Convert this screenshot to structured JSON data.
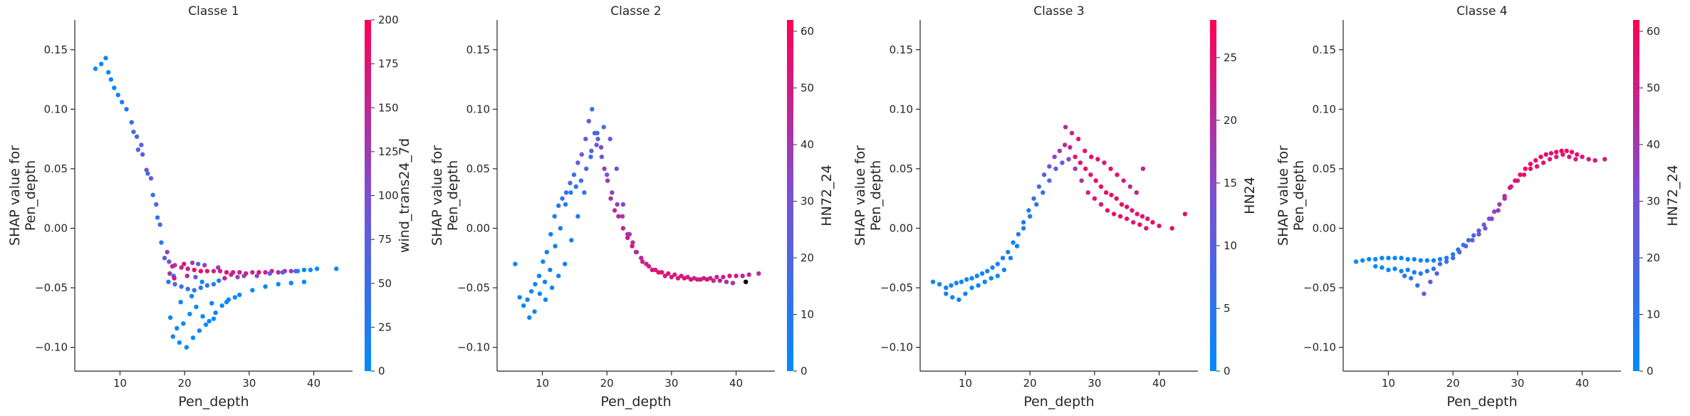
{
  "chart_data": [
    {
      "type": "scatter",
      "title": "Classe 1",
      "xlabel": "Pen_depth",
      "ylabel": "SHAP value for\nPen_depth",
      "colorbar_label": "wind_trans24_7d",
      "xlim": [
        3,
        46
      ],
      "ylim": [
        -0.12,
        0.175
      ],
      "xticks": [
        10,
        20,
        30,
        40
      ],
      "yticks": [
        -0.1,
        -0.05,
        0.0,
        0.05,
        0.1,
        0.15
      ],
      "color_range": [
        0,
        200
      ],
      "color_ticks": [
        0,
        25,
        50,
        75,
        100,
        125,
        150,
        175,
        200
      ],
      "colormap": [
        "#008bfb",
        "#ff0052"
      ],
      "x": [
        6.2,
        7.1,
        7.8,
        8.2,
        8.6,
        9.1,
        9.7,
        10.3,
        11,
        11.8,
        12.6,
        13.5,
        14.3,
        15.1,
        15.8,
        16.4,
        16.9,
        17.6,
        18.5,
        19.5,
        20.5,
        21.5,
        22.5,
        23.5,
        24.5,
        25.5,
        26.5,
        27.5,
        28.5,
        29.5,
        30.5,
        31.5,
        32.5,
        33.5,
        34.5,
        35.5,
        36.5,
        37.5,
        38.5,
        39.5,
        40.5,
        43.5,
        17.5,
        18.5,
        19.5,
        20.5,
        21.5,
        22.5,
        23.5,
        24.5,
        17.8,
        18.8,
        19.8,
        20.8,
        21.8,
        22.8,
        23.8,
        24.8,
        25.8,
        26.8,
        27.8,
        18.2,
        19.2,
        20.3,
        21.3,
        22.3,
        23.3,
        24.5,
        26.5,
        28.5,
        30.5,
        32.5,
        34.5,
        36.5,
        38.5,
        18.3,
        19.4,
        21.1,
        22.7,
        24.2,
        25.3,
        17.3,
        17.7,
        18.1,
        18.4,
        19.9,
        20.4,
        21.2,
        21.7,
        22.1,
        23.1,
        25.2,
        26.2,
        27.2,
        28.2,
        29.2,
        31.2,
        33.2,
        35.2,
        37.2,
        12.1,
        12.8,
        13.3,
        14.1,
        14.8,
        15.6,
        16.2
      ],
      "y": [
        0.134,
        0.138,
        0.143,
        0.131,
        0.125,
        0.118,
        0.112,
        0.106,
        0.1,
        0.089,
        0.077,
        0.062,
        0.046,
        0.028,
        0.009,
        -0.012,
        -0.025,
        -0.028,
        -0.031,
        -0.033,
        -0.034,
        -0.035,
        -0.036,
        -0.036,
        -0.036,
        -0.036,
        -0.037,
        -0.037,
        -0.037,
        -0.038,
        -0.037,
        -0.037,
        -0.037,
        -0.036,
        -0.037,
        -0.036,
        -0.036,
        -0.036,
        -0.035,
        -0.035,
        -0.034,
        -0.034,
        -0.045,
        -0.047,
        -0.049,
        -0.051,
        -0.052,
        -0.05,
        -0.048,
        -0.047,
        -0.075,
        -0.084,
        -0.08,
        -0.072,
        -0.066,
        -0.074,
        -0.078,
        -0.071,
        -0.065,
        -0.06,
        -0.058,
        -0.091,
        -0.096,
        -0.1,
        -0.092,
        -0.086,
        -0.081,
        -0.076,
        -0.062,
        -0.056,
        -0.052,
        -0.049,
        -0.047,
        -0.046,
        -0.045,
        -0.04,
        -0.062,
        -0.057,
        -0.045,
        -0.063,
        -0.044,
        -0.02,
        -0.038,
        -0.032,
        -0.042,
        -0.03,
        -0.04,
        -0.029,
        -0.041,
        -0.03,
        -0.031,
        -0.033,
        -0.042,
        -0.039,
        -0.041,
        -0.04,
        -0.04,
        -0.038,
        -0.037,
        -0.036,
        0.081,
        0.066,
        0.07,
        0.049,
        0.042,
        0.02,
        0.003
      ],
      "c": [
        2,
        4,
        6,
        8,
        12,
        10,
        15,
        20,
        30,
        45,
        60,
        75,
        50,
        40,
        30,
        25,
        80,
        100,
        120,
        150,
        160,
        180,
        190,
        170,
        160,
        150,
        180,
        170,
        160,
        180,
        150,
        170,
        160,
        150,
        140,
        150,
        130,
        10,
        5,
        5,
        5,
        3,
        40,
        60,
        55,
        40,
        35,
        45,
        40,
        30,
        10,
        8,
        6,
        5,
        7,
        6,
        5,
        8,
        6,
        5,
        4,
        4,
        3,
        3,
        2,
        4,
        3,
        5,
        6,
        5,
        4,
        4,
        3,
        3,
        3,
        20,
        15,
        12,
        10,
        8,
        15,
        120,
        140,
        160,
        170,
        180,
        150,
        130,
        90,
        70,
        120,
        140,
        160,
        150,
        120,
        110,
        110,
        90,
        60,
        50,
        60,
        80,
        70,
        90,
        80,
        60,
        50
      ]
    },
    {
      "type": "scatter",
      "title": "Classe 2",
      "xlabel": "Pen_depth",
      "ylabel": "SHAP value for\nPen_depth",
      "colorbar_label": "HN72_24",
      "xlim": [
        3,
        46
      ],
      "ylim": [
        -0.12,
        0.175
      ],
      "xticks": [
        10,
        20,
        30,
        40
      ],
      "yticks": [
        -0.1,
        -0.05,
        0.0,
        0.05,
        0.1,
        0.15
      ],
      "color_range": [
        0,
        62
      ],
      "color_ticks": [
        0,
        10,
        20,
        30,
        40,
        50,
        60
      ],
      "colormap": [
        "#008bfb",
        "#ff0052"
      ],
      "x": [
        5.8,
        6.5,
        7.1,
        7.7,
        8.3,
        8.9,
        9.5,
        10.1,
        10.7,
        11.3,
        11.9,
        12.5,
        13.1,
        13.7,
        14.3,
        14.9,
        15.5,
        16.1,
        16.7,
        17.2,
        17.7,
        18.1,
        18.6,
        19.1,
        19.6,
        20.1,
        20.6,
        21.2,
        21.8,
        22.5,
        23.2,
        23.9,
        24.6,
        25.3,
        26.1,
        27,
        28,
        29,
        30,
        31,
        32,
        33,
        34,
        35,
        36,
        37,
        38,
        39,
        40,
        41,
        42,
        43.5,
        8,
        8.8,
        9.6,
        10.4,
        11.2,
        12,
        12.8,
        13.6,
        14.4,
        15.2,
        16,
        16.8,
        17.6,
        18.4,
        19.2,
        20,
        20.8,
        21.6,
        22.4,
        23.2,
        24,
        10.5,
        11.5,
        12.5,
        13.5,
        14.5,
        15.5,
        16.5,
        17.5,
        18.5,
        19.5,
        20.5,
        21.5,
        22.5,
        23.5,
        24.5,
        25.5,
        26.5,
        27.5,
        28.5,
        29.5,
        30.5,
        31.5,
        32.5,
        33.5,
        34.5,
        35.5,
        36.5,
        37.5,
        38.5,
        39.5,
        41.5
      ],
      "y": [
        -0.03,
        -0.058,
        -0.065,
        -0.06,
        -0.053,
        -0.047,
        -0.04,
        -0.028,
        -0.02,
        -0.005,
        0.01,
        0.019,
        0.025,
        0.03,
        0.038,
        0.045,
        0.055,
        0.062,
        0.075,
        0.09,
        0.1,
        0.08,
        0.075,
        0.068,
        0.05,
        0.04,
        0.025,
        0.015,
        0.01,
        0.0,
        -0.008,
        -0.015,
        -0.02,
        -0.025,
        -0.03,
        -0.035,
        -0.037,
        -0.04,
        -0.041,
        -0.042,
        -0.042,
        -0.043,
        -0.043,
        -0.042,
        -0.042,
        -0.041,
        -0.041,
        -0.04,
        -0.04,
        -0.04,
        -0.039,
        -0.038,
        -0.075,
        -0.07,
        -0.055,
        -0.045,
        -0.035,
        -0.015,
        0.0,
        0.02,
        0.03,
        0.035,
        0.04,
        0.05,
        0.065,
        0.07,
        0.06,
        0.045,
        0.03,
        0.02,
        0.01,
        -0.005,
        -0.012,
        -0.06,
        -0.05,
        -0.04,
        -0.03,
        -0.01,
        0.01,
        0.03,
        0.06,
        0.08,
        0.085,
        0.075,
        0.05,
        0.02,
        -0.005,
        -0.02,
        -0.028,
        -0.032,
        -0.035,
        -0.037,
        -0.038,
        -0.039,
        -0.04,
        -0.041,
        -0.042,
        -0.043,
        -0.043,
        -0.044,
        -0.044,
        -0.045,
        -0.046,
        -0.045
      ],
      "c": [
        2,
        2,
        3,
        2,
        4,
        3,
        2,
        5,
        4,
        6,
        8,
        10,
        12,
        15,
        20,
        18,
        25,
        30,
        28,
        22,
        15,
        20,
        25,
        35,
        38,
        40,
        42,
        45,
        48,
        50,
        52,
        55,
        50,
        48,
        52,
        55,
        58,
        50,
        52,
        55,
        58,
        56,
        54,
        52,
        50,
        48,
        50,
        52,
        50,
        48,
        46,
        45,
        2,
        3,
        2,
        3,
        4,
        5,
        6,
        8,
        10,
        12,
        15,
        18,
        20,
        25,
        28,
        30,
        35,
        38,
        40,
        42,
        45,
        3,
        2,
        4,
        5,
        6,
        8,
        10,
        12,
        15,
        18,
        22,
        28,
        35,
        40,
        45,
        48,
        50,
        52,
        55,
        55,
        50,
        52,
        48,
        45,
        50,
        52,
        48,
        45,
        42,
        40
      ],
      "annotations": []
    },
    {
      "type": "scatter",
      "title": "Classe 3",
      "xlabel": "Pen_depth",
      "ylabel": "SHAP value for\nPen_depth",
      "colorbar_label": "HN24",
      "xlim": [
        3,
        46
      ],
      "ylim": [
        -0.12,
        0.175
      ],
      "xticks": [
        10,
        20,
        30,
        40
      ],
      "yticks": [
        -0.1,
        -0.05,
        0.0,
        0.05,
        0.1,
        0.15
      ],
      "color_range": [
        0,
        28
      ],
      "color_ticks": [
        0,
        5,
        10,
        15,
        20,
        25
      ],
      "colormap": [
        "#008bfb",
        "#ff0052"
      ],
      "x": [
        5,
        6,
        7,
        7.8,
        8.6,
        9.4,
        10.2,
        11,
        11.8,
        12.6,
        13.4,
        14.2,
        15,
        15.8,
        16.6,
        17.4,
        18.2,
        19,
        19.8,
        20.6,
        21.4,
        22.2,
        23,
        23.8,
        24.6,
        25.4,
        26.2,
        27,
        27.8,
        28.6,
        29.4,
        30.2,
        31,
        31.8,
        32.6,
        33.4,
        34.2,
        35,
        35.8,
        36.6,
        37.4,
        38.2,
        39,
        40,
        42,
        44,
        7,
        8,
        9,
        10,
        11,
        12,
        13,
        14,
        15,
        16,
        17,
        18,
        19,
        20,
        21,
        22,
        23,
        24,
        25,
        26,
        27,
        28,
        29,
        30,
        31,
        32,
        33,
        34,
        35,
        36,
        37,
        38,
        25.5,
        26.5,
        27.5,
        28.5,
        29.5,
        30.5,
        31.5,
        32.5,
        33.5,
        34.5,
        35.5,
        36.5,
        37.5
      ],
      "y": [
        -0.045,
        -0.047,
        -0.05,
        -0.048,
        -0.046,
        -0.045,
        -0.043,
        -0.042,
        -0.04,
        -0.038,
        -0.036,
        -0.033,
        -0.03,
        -0.025,
        -0.02,
        -0.012,
        -0.005,
        0.005,
        0.015,
        0.025,
        0.035,
        0.045,
        0.052,
        0.06,
        0.065,
        0.07,
        0.068,
        0.06,
        0.055,
        0.05,
        0.045,
        0.04,
        0.035,
        0.03,
        0.028,
        0.025,
        0.02,
        0.018,
        0.015,
        0.012,
        0.01,
        0.008,
        0.005,
        0.002,
        0.0,
        0.012,
        -0.055,
        -0.058,
        -0.06,
        -0.055,
        -0.05,
        -0.048,
        -0.045,
        -0.042,
        -0.04,
        -0.035,
        -0.025,
        -0.015,
        0.0,
        0.01,
        0.02,
        0.03,
        0.04,
        0.05,
        0.055,
        0.058,
        0.05,
        0.04,
        0.03,
        0.025,
        0.02,
        0.015,
        0.012,
        0.01,
        0.008,
        0.005,
        0.003,
        0.0,
        0.085,
        0.08,
        0.075,
        0.065,
        0.06,
        0.058,
        0.055,
        0.05,
        0.045,
        0.04,
        0.035,
        0.03,
        0.05
      ],
      "c": [
        1,
        1,
        2,
        1,
        2,
        1,
        2,
        1,
        2,
        1,
        2,
        3,
        2,
        3,
        4,
        3,
        4,
        5,
        4,
        6,
        8,
        10,
        12,
        15,
        18,
        20,
        22,
        24,
        25,
        26,
        25,
        26,
        27,
        26,
        25,
        26,
        27,
        26,
        25,
        26,
        25,
        24,
        26,
        25,
        26,
        25,
        1,
        2,
        1,
        2,
        1,
        2,
        1,
        2,
        1,
        2,
        3,
        2,
        3,
        4,
        5,
        6,
        8,
        10,
        12,
        15,
        18,
        20,
        22,
        24,
        25,
        26,
        25,
        26,
        25,
        24,
        26,
        25,
        20,
        22,
        24,
        25,
        26,
        25,
        24,
        26,
        25,
        24,
        20,
        22,
        24
      ]
    },
    {
      "type": "scatter",
      "title": "Classe 4",
      "xlabel": "Pen_depth",
      "ylabel": "SHAP value for\nPen_depth",
      "colorbar_label": "HN72_24",
      "xlim": [
        3,
        46
      ],
      "ylim": [
        -0.12,
        0.175
      ],
      "xticks": [
        10,
        20,
        30,
        40
      ],
      "yticks": [
        -0.1,
        -0.05,
        0.0,
        0.05,
        0.1,
        0.15
      ],
      "color_range": [
        0,
        62
      ],
      "color_ticks": [
        0,
        10,
        20,
        30,
        40,
        50,
        60
      ],
      "colormap": [
        "#008bfb",
        "#ff0052"
      ],
      "x": [
        5,
        6,
        7,
        8,
        9,
        10,
        11,
        12,
        13,
        14,
        15,
        16,
        17,
        18,
        19,
        20,
        20.8,
        21.6,
        22.4,
        23.2,
        24,
        24.8,
        25.6,
        26.4,
        27.2,
        28,
        28.8,
        29.6,
        30.4,
        31.2,
        32,
        32.8,
        33.6,
        34.4,
        35.2,
        36,
        36.8,
        37.6,
        38.4,
        39.2,
        40,
        41,
        42,
        43.5,
        8,
        9,
        10,
        11,
        12,
        13,
        14,
        15,
        16,
        17,
        18,
        19,
        20,
        21,
        22,
        23,
        24,
        25,
        26,
        27,
        28,
        29,
        30,
        31,
        32,
        33,
        34,
        35,
        36,
        37,
        38,
        39,
        15.5,
        14.5,
        16.5,
        13.5,
        12.5,
        17.5
      ],
      "y": [
        -0.028,
        -0.027,
        -0.026,
        -0.026,
        -0.025,
        -0.025,
        -0.025,
        -0.025,
        -0.026,
        -0.026,
        -0.027,
        -0.027,
        -0.027,
        -0.026,
        -0.025,
        -0.022,
        -0.018,
        -0.014,
        -0.01,
        -0.006,
        -0.002,
        0.003,
        0.008,
        0.014,
        0.02,
        0.027,
        0.034,
        0.04,
        0.045,
        0.05,
        0.054,
        0.057,
        0.06,
        0.062,
        0.063,
        0.064,
        0.065,
        0.065,
        0.064,
        0.062,
        0.06,
        0.058,
        0.057,
        0.058,
        -0.032,
        -0.033,
        -0.035,
        -0.034,
        -0.036,
        -0.035,
        -0.037,
        -0.038,
        -0.036,
        -0.034,
        -0.03,
        -0.028,
        -0.025,
        -0.02,
        -0.015,
        -0.01,
        -0.005,
        0.0,
        0.008,
        0.015,
        0.025,
        0.035,
        0.04,
        0.045,
        0.05,
        0.052,
        0.055,
        0.058,
        0.06,
        0.062,
        0.06,
        0.058,
        -0.055,
        -0.048,
        -0.045,
        -0.042,
        -0.04,
        -0.038
      ],
      "c": [
        1,
        1,
        2,
        1,
        2,
        1,
        2,
        3,
        2,
        3,
        4,
        3,
        5,
        4,
        6,
        8,
        10,
        12,
        15,
        18,
        22,
        25,
        30,
        35,
        40,
        45,
        50,
        55,
        58,
        60,
        58,
        56,
        60,
        58,
        55,
        58,
        60,
        56,
        58,
        55,
        52,
        54,
        52,
        50,
        2,
        3,
        2,
        3,
        4,
        5,
        6,
        8,
        10,
        12,
        14,
        16,
        18,
        20,
        22,
        25,
        28,
        30,
        35,
        40,
        45,
        50,
        52,
        55,
        58,
        56,
        54,
        52,
        50,
        55,
        52,
        48,
        20,
        15,
        25,
        12,
        10,
        18
      ]
    }
  ]
}
